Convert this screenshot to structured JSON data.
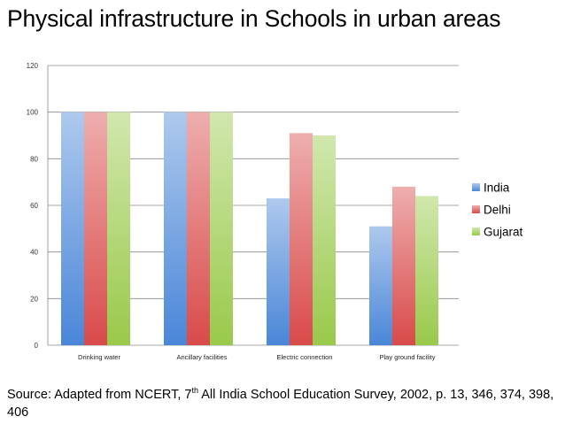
{
  "title": "Physical infrastructure in Schools in urban areas",
  "source": {
    "prefix": "Source: Adapted from NCERT, 7",
    "sup": "th",
    "suffix": " All India School Education Survey, 2002, p. 13, 346, 374, 398, 406"
  },
  "chart_data": {
    "type": "bar",
    "categories": [
      "Drinking water",
      "Ancillary facilities",
      "Electric connection",
      "Play ground facility"
    ],
    "series": [
      {
        "name": "India",
        "values": [
          100,
          100,
          63,
          51
        ],
        "color": "#4a86d8"
      },
      {
        "name": "Delhi",
        "values": [
          100,
          100,
          91,
          68
        ],
        "color": "#d94a4a"
      },
      {
        "name": "Gujarat",
        "values": [
          100,
          100,
          90,
          64
        ],
        "color": "#99c94a"
      }
    ],
    "ylim": [
      0,
      120
    ],
    "yticks": [
      "0",
      "20",
      "40",
      "60",
      "80",
      "100",
      "120"
    ],
    "grid": true,
    "legend": "right"
  }
}
